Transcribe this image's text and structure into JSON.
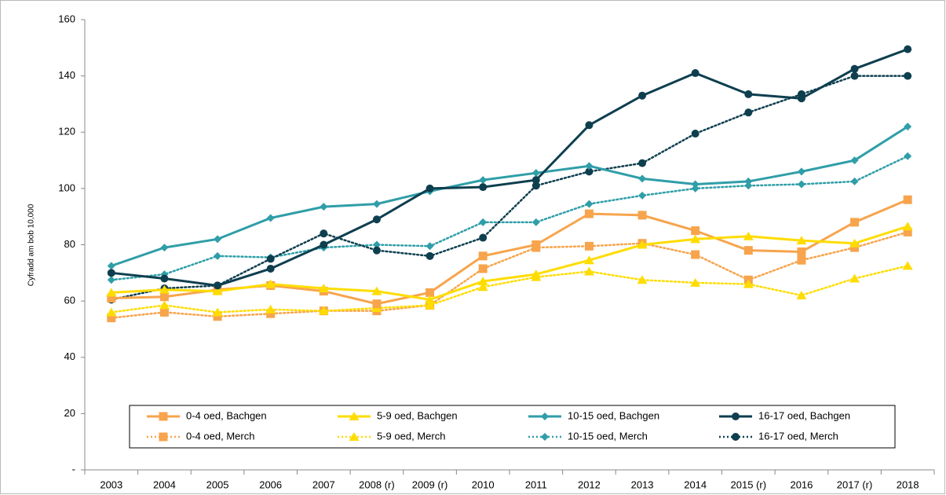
{
  "chart_data": {
    "type": "line",
    "y_label": "Cyfradd am bob 10,000",
    "categories": [
      "2003",
      "2004",
      "2005",
      "2006",
      "2007",
      "2008 (r)",
      "2009 (r)",
      "2010",
      "2011",
      "2012",
      "2013",
      "2014",
      "2015 (r)",
      "2016",
      "2017 (r)",
      "2018"
    ],
    "ylim": [
      0,
      160
    ],
    "yticks": [
      {
        "value": 0,
        "label": "-"
      },
      20,
      40,
      60,
      80,
      100,
      120,
      140,
      160
    ],
    "grid": false,
    "legend": "bottom",
    "series": [
      {
        "name": "0-4 oed, Bachgen",
        "color": "#f7a44c",
        "style": "solid",
        "marker": "square",
        "values": [
          61,
          61.5,
          64,
          65.5,
          63.5,
          59,
          63,
          76,
          80,
          91,
          90.5,
          85,
          78,
          77.5,
          88,
          96
        ]
      },
      {
        "name": "5-9 oed, Bachgen",
        "color": "#ffdc00",
        "style": "solid",
        "marker": "triangle",
        "values": [
          63,
          64,
          63.5,
          66,
          64.5,
          63.5,
          60.5,
          67,
          69.5,
          74.5,
          80,
          82,
          83,
          81.5,
          80.5,
          86.5
        ]
      },
      {
        "name": "10-15 oed, Bachgen",
        "color": "#2f9ea8",
        "style": "solid",
        "marker": "diamond",
        "values": [
          72.5,
          79,
          82,
          89.5,
          93.5,
          94.5,
          99,
          103,
          105.5,
          108,
          103.5,
          101.5,
          102.5,
          106,
          110,
          122
        ]
      },
      {
        "name": "16-17 oed, Bachgen",
        "color": "#0e3f4f",
        "style": "solid",
        "marker": "circle",
        "values": [
          70,
          68,
          65.5,
          71.5,
          80,
          89,
          100,
          100.5,
          103,
          122.5,
          133,
          141,
          133.5,
          132,
          142.5,
          149.5
        ]
      },
      {
        "name": "0-4 oed, Merch",
        "color": "#f7a44c",
        "style": "dotted",
        "marker": "square",
        "values": [
          54,
          56,
          54.5,
          55.5,
          56.5,
          56.5,
          58.5,
          71.5,
          79,
          79.5,
          80.5,
          76.5,
          67.5,
          74.5,
          79,
          84.5
        ]
      },
      {
        "name": "5-9 oed, Merch",
        "color": "#ffdc00",
        "style": "dotted",
        "marker": "triangle",
        "values": [
          56,
          58.5,
          56,
          57,
          56.5,
          57.5,
          58.5,
          65,
          68.5,
          70.5,
          67.5,
          66.5,
          66,
          62,
          68,
          72.5
        ]
      },
      {
        "name": "10-15 oed, Merch",
        "color": "#2f9ea8",
        "style": "dotted",
        "marker": "diamond",
        "values": [
          67.5,
          69.5,
          76,
          75.5,
          79,
          80,
          79.5,
          88,
          88,
          94.5,
          97.5,
          100,
          101,
          101.5,
          102.5,
          111.5
        ]
      },
      {
        "name": "16-17 oed, Merch",
        "color": "#0e3f4f",
        "style": "dotted",
        "marker": "circle",
        "values": [
          60.5,
          64.5,
          65.5,
          75,
          84,
          78,
          76,
          82.5,
          101,
          106,
          109,
          119.5,
          127,
          133.5,
          140,
          140
        ]
      }
    ]
  }
}
